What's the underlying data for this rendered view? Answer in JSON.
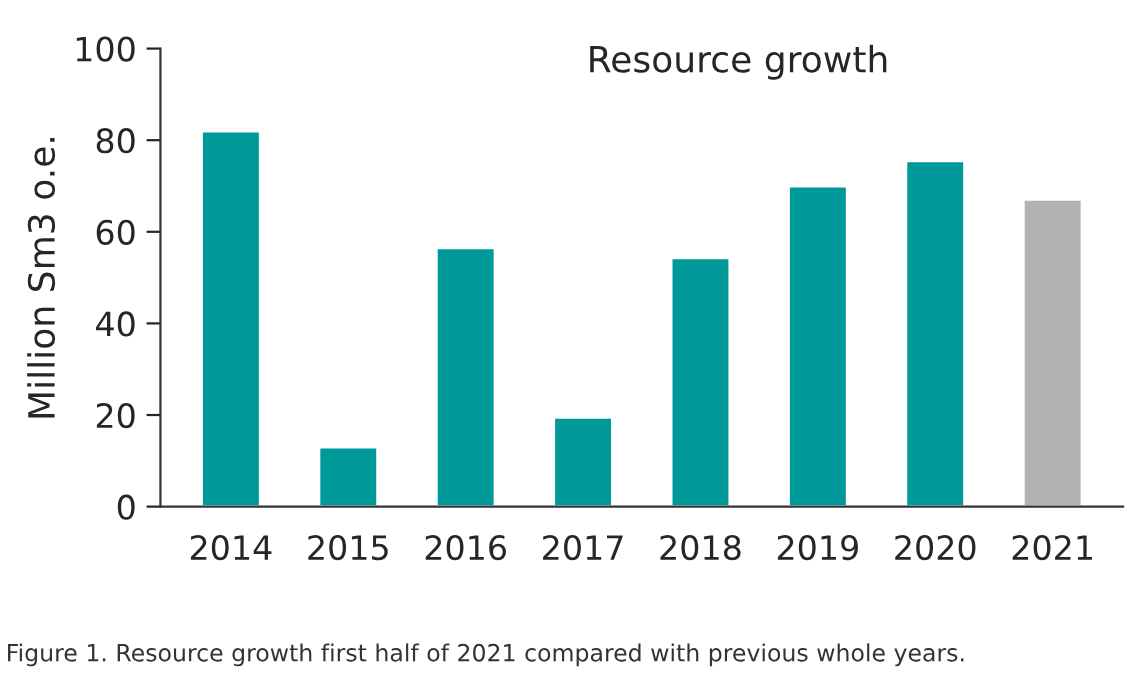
{
  "chart_data": {
    "type": "bar",
    "title": "Resource growth",
    "ylabel": "Million Sm3 o.e.",
    "categories": [
      "2014",
      "2015",
      "2016",
      "2017",
      "2018",
      "2019",
      "2020",
      "2021"
    ],
    "values": [
      82,
      13,
      56.5,
      19.5,
      54.3,
      70,
      75.5,
      67.1
    ],
    "colors": [
      "#009999",
      "#009999",
      "#009999",
      "#009999",
      "#009999",
      "#009999",
      "#009999",
      "#b2b2b2"
    ],
    "ylim": [
      0,
      100
    ],
    "yticks": [
      0,
      20,
      40,
      60,
      80,
      100
    ],
    "grid": false,
    "legend": false,
    "annotations": [
      "Figure 1. Resource growth first half of 2021 compared with previous whole years."
    ]
  }
}
